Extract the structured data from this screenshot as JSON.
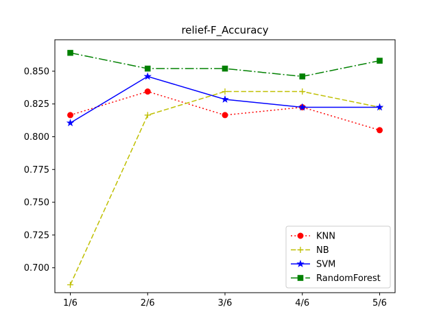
{
  "chart_data": {
    "type": "line",
    "title": "relief-F_Accuracy",
    "xlabel": "",
    "ylabel": "",
    "categories": [
      "1/6",
      "2/6",
      "3/6",
      "4/6",
      "5/6"
    ],
    "ylim": [
      0.681,
      0.874
    ],
    "yticks": [
      0.7,
      0.725,
      0.75,
      0.775,
      0.8,
      0.825,
      0.85
    ],
    "ytick_labels": [
      "0.700",
      "0.725",
      "0.750",
      "0.775",
      "0.800",
      "0.825",
      "0.850"
    ],
    "grid": false,
    "legend_position": "lower-right",
    "series": [
      {
        "name": "KNN",
        "values": [
          0.8165,
          0.8345,
          0.8165,
          0.8225,
          0.805
        ],
        "color": "#ff0000",
        "line_style": "dotted",
        "marker": "circle"
      },
      {
        "name": "NB",
        "values": [
          0.687,
          0.8165,
          0.8345,
          0.8345,
          0.8225
        ],
        "color": "#bfbf00",
        "line_style": "dashed",
        "marker": "plus"
      },
      {
        "name": "SVM",
        "values": [
          0.8105,
          0.846,
          0.8285,
          0.8225,
          0.8225
        ],
        "color": "#0000ff",
        "line_style": "solid",
        "marker": "star"
      },
      {
        "name": "RandomForest",
        "values": [
          0.864,
          0.852,
          0.852,
          0.846,
          0.858
        ],
        "color": "#008000",
        "line_style": "dashdot",
        "marker": "square"
      }
    ]
  }
}
